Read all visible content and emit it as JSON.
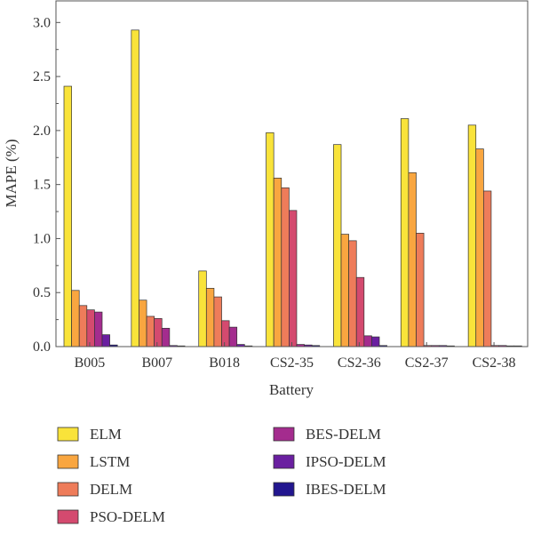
{
  "chart_data": {
    "type": "bar",
    "title": "",
    "xlabel": "Battery",
    "ylabel": "MAPE (%)",
    "ylim": [
      0,
      3.2
    ],
    "yticks": [
      "0.0",
      "0.5",
      "1.0",
      "1.5",
      "2.0",
      "2.5",
      "3.0"
    ],
    "grid": false,
    "legend_position": "bottom",
    "categories": [
      "B005",
      "B007",
      "B018",
      "CS2-35",
      "CS2-36",
      "CS2-37",
      "CS2-38"
    ],
    "series": [
      {
        "name": "ELM",
        "color": "#f9e33a",
        "values": [
          2.41,
          2.93,
          0.7,
          1.98,
          1.87,
          2.11,
          2.05
        ]
      },
      {
        "name": "LSTM",
        "color": "#f9a640",
        "values": [
          0.52,
          0.43,
          0.54,
          1.56,
          1.04,
          1.61,
          1.83
        ]
      },
      {
        "name": "DELM",
        "color": "#ee7c5a",
        "values": [
          0.38,
          0.28,
          0.46,
          1.47,
          0.98,
          1.05,
          1.44
        ]
      },
      {
        "name": "PSO-DELM",
        "color": "#d44a6f",
        "values": [
          0.34,
          0.26,
          0.24,
          1.26,
          0.64,
          0.01,
          0.01
        ]
      },
      {
        "name": "BES-DELM",
        "color": "#a42c8e",
        "values": [
          0.32,
          0.17,
          0.18,
          0.02,
          0.1,
          0.01,
          0.01
        ]
      },
      {
        "name": "IPSO-DELM",
        "color": "#6a1fa0",
        "values": [
          0.11,
          0.01,
          0.02,
          0.015,
          0.09,
          0.01,
          0.005
        ]
      },
      {
        "name": "IBES-DELM",
        "color": "#22168f",
        "values": [
          0.015,
          0.005,
          0.005,
          0.01,
          0.01,
          0.005,
          0.005
        ]
      }
    ]
  }
}
